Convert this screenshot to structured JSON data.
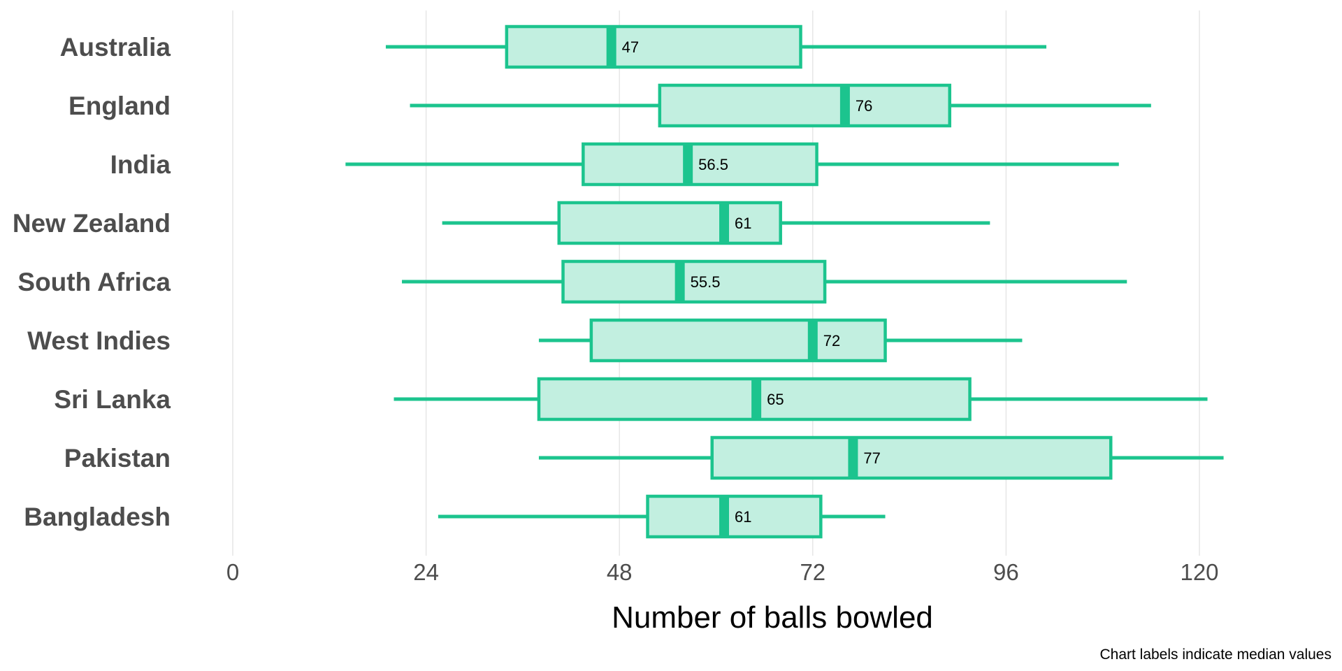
{
  "chart_data": {
    "type": "boxplot",
    "orientation": "horizontal",
    "xlabel": "Number of balls bowled",
    "caption": "Chart labels indicate median values",
    "xlim": [
      0,
      128
    ],
    "xticks": [
      0,
      24,
      48,
      72,
      96,
      120
    ],
    "grid": "vertical major",
    "colors": {
      "box_fill": "#c2efe0",
      "box_stroke": "#1cc48e",
      "median": "#1cc48e",
      "whisker": "#1cc48e",
      "grid": "#e6e6e6",
      "label_text": "#4d4d4d"
    },
    "categories": [
      "Australia",
      "England",
      "India",
      "New Zealand",
      "South Africa",
      "West Indies",
      "Sri Lanka",
      "Pakistan",
      "Bangladesh"
    ],
    "series": [
      {
        "category": "Australia",
        "min": 19,
        "q1": 34,
        "median": 47,
        "median_label": "47",
        "q3": 70.5,
        "max": 101
      },
      {
        "category": "England",
        "min": 22,
        "q1": 53,
        "median": 76,
        "median_label": "76",
        "q3": 89,
        "max": 114
      },
      {
        "category": "India",
        "min": 14,
        "q1": 43.5,
        "median": 56.5,
        "median_label": "56.5",
        "q3": 72.5,
        "max": 110
      },
      {
        "category": "New Zealand",
        "min": 26,
        "q1": 40.5,
        "median": 61,
        "median_label": "61",
        "q3": 68,
        "max": 94
      },
      {
        "category": "South Africa",
        "min": 21,
        "q1": 41,
        "median": 55.5,
        "median_label": "55.5",
        "q3": 73.5,
        "max": 111
      },
      {
        "category": "West Indies",
        "min": 38,
        "q1": 44.5,
        "median": 72,
        "median_label": "72",
        "q3": 81,
        "max": 98
      },
      {
        "category": "Sri Lanka",
        "min": 20,
        "q1": 38,
        "median": 65,
        "median_label": "65",
        "q3": 91.5,
        "max": 121
      },
      {
        "category": "Pakistan",
        "min": 38,
        "q1": 59.5,
        "median": 77,
        "median_label": "77",
        "q3": 109,
        "max": 123
      },
      {
        "category": "Bangladesh",
        "min": 25.5,
        "q1": 51.5,
        "median": 61,
        "median_label": "61",
        "q3": 73,
        "max": 81
      }
    ]
  }
}
